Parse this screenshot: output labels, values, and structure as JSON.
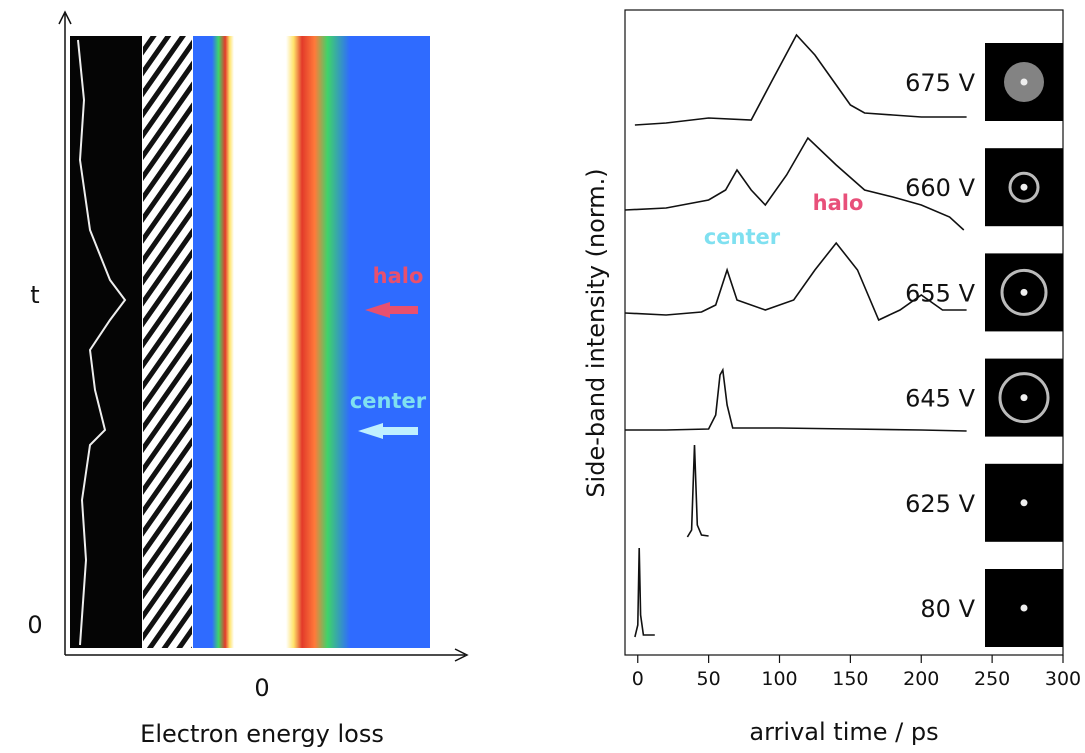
{
  "chart_data": [
    {
      "type": "diagram",
      "x_label": "Electron energy loss",
      "y_label": "t",
      "xticks": [
        0
      ],
      "yticks": [
        0
      ],
      "annotations": [
        {
          "text": "halo",
          "color": "#e8506e"
        },
        {
          "text": "center",
          "color": "#7fe0f0"
        }
      ]
    },
    {
      "type": "line",
      "x_label": "arrival time / ps",
      "y_label": "Side-band intensity (norm.)",
      "xlim": [
        -9,
        300
      ],
      "ylim": [
        0,
        6.45
      ],
      "xticks": [
        0,
        50,
        100,
        150,
        200,
        250,
        300
      ],
      "annotations": [
        {
          "text": "halo",
          "color": "#e8507a"
        },
        {
          "text": "center",
          "color": "#7fe0f0"
        }
      ],
      "series": [
        {
          "name": "675 V",
          "color": "#111111",
          "x": [
            -2,
            20,
            50,
            80,
            95,
            112,
            125,
            140,
            150,
            160,
            180,
            200,
            232
          ],
          "values": [
            5.3,
            5.32,
            5.37,
            5.35,
            5.75,
            6.2,
            6.0,
            5.7,
            5.5,
            5.42,
            5.4,
            5.38,
            5.38
          ]
        },
        {
          "name": "660 V",
          "color": "#111111",
          "x": [
            -9,
            20,
            50,
            62,
            70,
            80,
            90,
            105,
            120,
            140,
            160,
            180,
            200,
            220,
            230
          ],
          "values": [
            4.45,
            4.47,
            4.55,
            4.65,
            4.85,
            4.65,
            4.5,
            4.8,
            5.17,
            4.9,
            4.65,
            4.58,
            4.5,
            4.38,
            4.25
          ]
        },
        {
          "name": "655 V",
          "color": "#111111",
          "x": [
            -9,
            20,
            45,
            55,
            63,
            70,
            90,
            110,
            125,
            140,
            155,
            170,
            185,
            200,
            215,
            232
          ],
          "values": [
            3.42,
            3.4,
            3.43,
            3.5,
            3.85,
            3.55,
            3.45,
            3.55,
            3.85,
            4.12,
            3.85,
            3.35,
            3.45,
            3.6,
            3.45,
            3.45
          ]
        },
        {
          "name": "645 V",
          "color": "#111111",
          "x": [
            -9,
            20,
            50,
            55,
            58,
            60,
            63,
            67,
            100,
            150,
            200,
            232
          ],
          "values": [
            2.25,
            2.25,
            2.26,
            2.4,
            2.8,
            2.85,
            2.5,
            2.27,
            2.27,
            2.26,
            2.25,
            2.24
          ]
        },
        {
          "name": "625 V",
          "color": "#111111",
          "x": [
            35,
            38,
            40,
            42,
            45,
            50
          ],
          "values": [
            1.18,
            1.25,
            2.1,
            1.3,
            1.2,
            1.19
          ]
        },
        {
          "name": "80 V",
          "color": "#111111",
          "x": [
            -2,
            0,
            1,
            2,
            4,
            12
          ],
          "values": [
            0.18,
            0.3,
            1.07,
            0.4,
            0.2,
            0.2
          ]
        }
      ]
    }
  ]
}
